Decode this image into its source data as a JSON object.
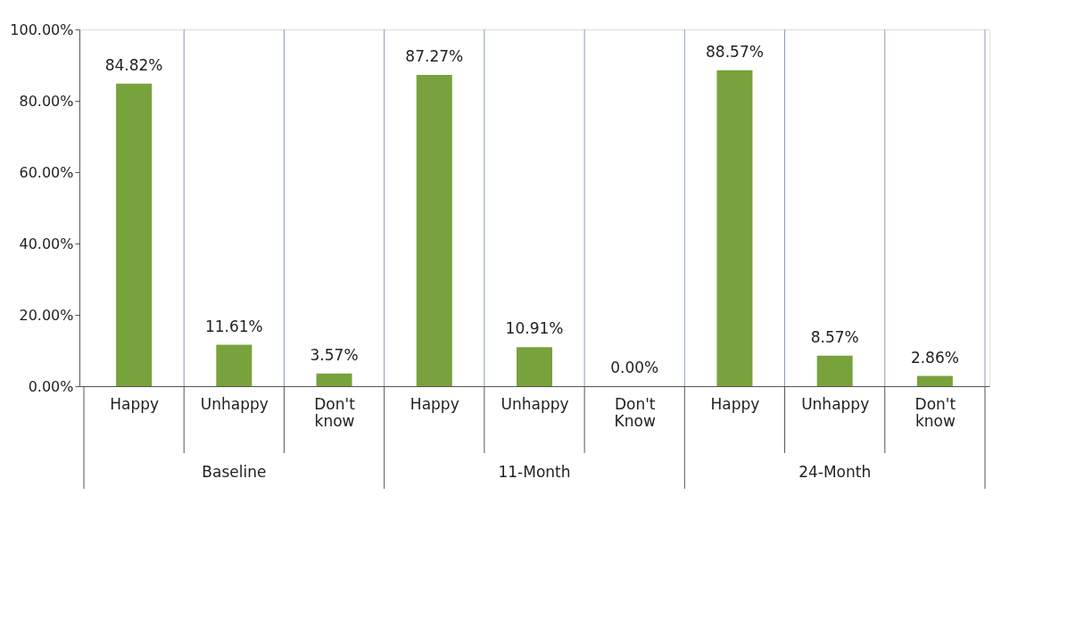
{
  "chart_data": {
    "type": "bar",
    "categories": [
      "Happy",
      "Unhappy",
      "Don't know",
      "Happy",
      "Unhappy",
      "Don't Know",
      "Happy",
      "Unhappy",
      "Don't know"
    ],
    "values": [
      84.82,
      11.61,
      3.57,
      87.27,
      10.91,
      0.0,
      88.57,
      8.57,
      2.86
    ],
    "value_labels": [
      "84.82%",
      "11.61%",
      "3.57%",
      "87.27%",
      "10.91%",
      "0.00%",
      "88.57%",
      "8.57%",
      "2.86%"
    ],
    "color": "#78a23c",
    "ylim": [
      0,
      100
    ],
    "yticks": [
      {
        "value": 0,
        "label": "0.00%"
      },
      {
        "value": 20,
        "label": "20.00%"
      },
      {
        "value": 40,
        "label": "40.00%"
      },
      {
        "value": 60,
        "label": "60.00%"
      },
      {
        "value": 80,
        "label": "80.00%"
      },
      {
        "value": 100,
        "label": "100.00%"
      }
    ],
    "annotations": [
      "Baseline",
      "11-Month",
      "24-Month"
    ],
    "grid": "x"
  }
}
